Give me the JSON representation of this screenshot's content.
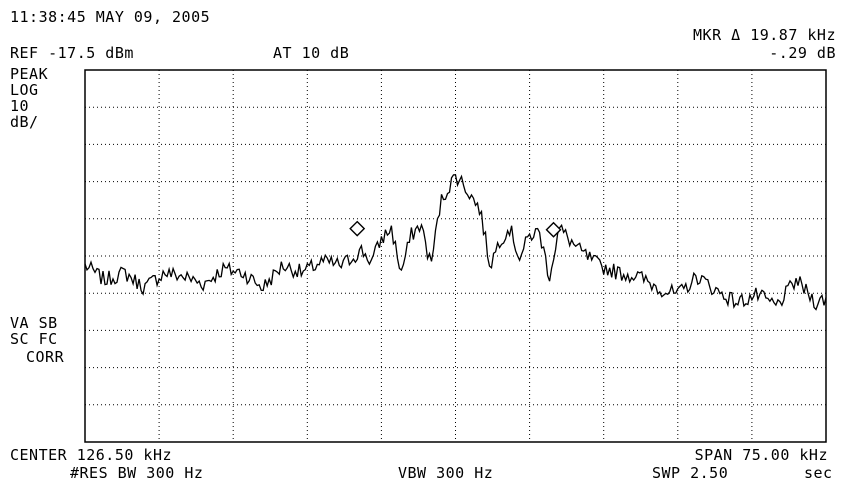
{
  "header": {
    "timestamp": "11:38:45 MAY 09, 2005",
    "ref_level": "REF -17.5 dBm",
    "attenuation": "AT 10 dB",
    "marker_readout_line1": "MKR Δ 19.87 kHz",
    "marker_readout_line2": "-.29 dB"
  },
  "left_annotations": {
    "detector": "PEAK",
    "scale_type": "LOG",
    "scale_value": "10",
    "scale_unit": "dB/",
    "flags_line1": "VA SB",
    "flags_line2": "SC FC",
    "flags_line3": "CORR"
  },
  "footer": {
    "center": "CENTER 126.50 kHz",
    "span": "SPAN 75.00 kHz",
    "res_bw": "#RES BW 300 Hz",
    "vbw": "VBW 300 Hz",
    "sweep": "SWP 2.50",
    "sweep_unit": "sec"
  },
  "colors": {
    "trace": "#000000",
    "graticule": "#000000",
    "background": "#ffffff"
  },
  "chart_data": {
    "type": "line",
    "title": "",
    "xlabel": "",
    "ylabel": "",
    "x_unit": "kHz",
    "y_unit": "dBm",
    "xlim": [
      89.0,
      164.0
    ],
    "ylim": [
      -117.5,
      -17.5
    ],
    "grid": true,
    "grid_divisions": {
      "x": 10,
      "y": 10
    },
    "series": [
      {
        "x": [
          89.0,
          91.0,
          93.0,
          95.0,
          97.0,
          99.0,
          101.0,
          103.0,
          105.0,
          107.0,
          109.0,
          111.0,
          113.0,
          115.0,
          117.0,
          118.0,
          119.0,
          120.0,
          121.0,
          122.0,
          123.0,
          124.0,
          125.0,
          126.0,
          126.5,
          127.0,
          128.0,
          129.0,
          130.0,
          131.0,
          132.0,
          133.0,
          134.0,
          135.0,
          136.0,
          137.0,
          139.0,
          141.0,
          143.0,
          145.0,
          147.0,
          149.0,
          151.0,
          153.0,
          155.0,
          157.0,
          159.0,
          161.0,
          163.0,
          164.0
        ],
        "y": [
          -70,
          -74,
          -72,
          -76,
          -72,
          -73,
          -75,
          -71,
          -72,
          -76,
          -70,
          -72,
          -69,
          -70,
          -66,
          -69,
          -63,
          -60,
          -72,
          -62,
          -59,
          -70,
          -53,
          -48,
          -46,
          -47,
          -51,
          -55,
          -70,
          -63,
          -60,
          -68,
          -62,
          -61,
          -73,
          -60,
          -66,
          -70,
          -72,
          -73,
          -76,
          -78,
          -73,
          -77,
          -80,
          -78,
          -81,
          -74,
          -80,
          -79
        ]
      }
    ],
    "markers": [
      {
        "label": "reference marker",
        "x": 116.55,
        "y": -61.5,
        "symbol": "diamond"
      },
      {
        "label": "delta marker",
        "x": 136.42,
        "y": -61.8,
        "symbol": "diamond"
      }
    ]
  }
}
